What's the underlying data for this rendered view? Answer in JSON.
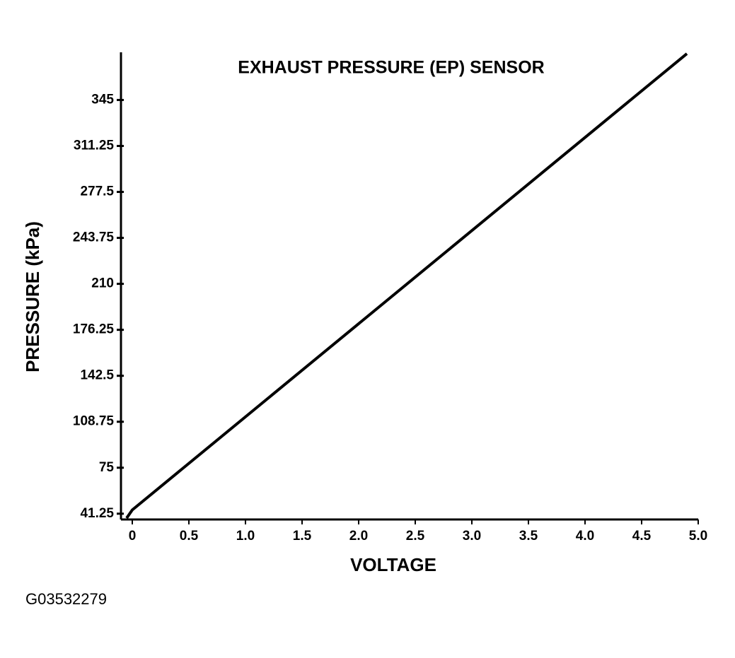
{
  "chart_data": {
    "type": "line",
    "title": "EXHAUST PRESSURE (EP) SENSOR",
    "x_label": "VOLTAGE",
    "y_label": "PRESSURE (kPa)",
    "footnote": "G03532279",
    "x": [
      -0.05,
      0,
      4.9
    ],
    "values": [
      38,
      44,
      379
    ],
    "color": "#000000",
    "xlim": [
      -0.1,
      5.0
    ],
    "ylim": [
      37,
      380
    ],
    "xticks": [
      0,
      0.5,
      {
        "value": 1,
        "label": "1.0"
      },
      1.5,
      {
        "value": 2,
        "label": "2.0"
      },
      2.5,
      {
        "value": 3,
        "label": "3.0"
      },
      3.5,
      {
        "value": 4,
        "label": "4.0"
      },
      4.5,
      {
        "value": 5,
        "label": "5.0"
      }
    ],
    "yticks": [
      41.25,
      75,
      108.75,
      142.5,
      176.25,
      210,
      243.75,
      277.5,
      311.25,
      345
    ],
    "grid": false
  }
}
